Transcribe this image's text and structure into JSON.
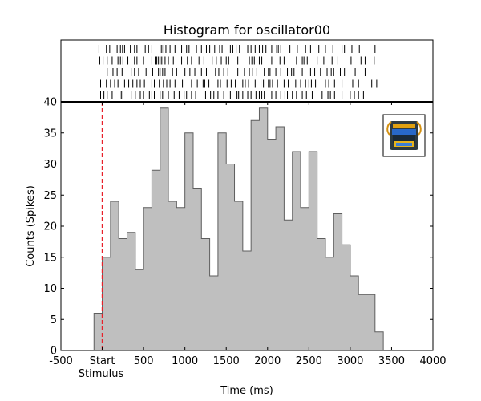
{
  "chart_data": {
    "type": "bar",
    "title": "Histogram for oscillator00",
    "xlabel": "Time (ms)",
    "ylabel": "Counts (Spikes)",
    "xlim": [
      -500,
      4000
    ],
    "ylim": [
      0,
      40
    ],
    "x_ticks": [
      {
        "value": -500,
        "label": "-500"
      },
      {
        "value": 0,
        "label": "Start"
      },
      {
        "value": 500,
        "label": "500"
      },
      {
        "value": 1000,
        "label": "1000"
      },
      {
        "value": 1500,
        "label": "1500"
      },
      {
        "value": 2000,
        "label": "2000"
      },
      {
        "value": 2500,
        "label": "2500"
      },
      {
        "value": 3000,
        "label": "3000"
      },
      {
        "value": 3500,
        "label": "3500"
      },
      {
        "value": 4000,
        "label": "4000"
      }
    ],
    "y_ticks": [
      0,
      5,
      10,
      15,
      20,
      25,
      30,
      35,
      40
    ],
    "stimulus": {
      "x": 0,
      "label": "Stimulus",
      "color": "#e8202a"
    },
    "bin_edges": [
      -100,
      0,
      100,
      200,
      300,
      400,
      500,
      600,
      700,
      800,
      900,
      1000,
      1100,
      1200,
      1300,
      1400,
      1500,
      1600,
      1700,
      1800,
      1900,
      2000,
      2100,
      2200,
      2300,
      2400,
      2500,
      2600,
      2700,
      2800,
      2900,
      3000,
      3100,
      3200,
      3300,
      3400
    ],
    "values": [
      6,
      15,
      24,
      18,
      19,
      13,
      23,
      29,
      39,
      24,
      23,
      35,
      26,
      18,
      12,
      35,
      30,
      24,
      16,
      37,
      39,
      34,
      36,
      21,
      32,
      23,
      32,
      18,
      15,
      22,
      17,
      12,
      9,
      9,
      3
    ],
    "bar_fill": "#bfbfbf",
    "bar_edge": "#5e5e5e",
    "raster": {
      "trials": 5,
      "spikes": [
        [
          -40,
          50,
          90,
          180,
          220,
          245,
          270,
          340,
          390,
          420,
          520,
          560,
          600,
          700,
          720,
          745,
          770,
          820,
          880,
          960,
          1020,
          1050,
          1140,
          1200,
          1260,
          1300,
          1360,
          1420,
          1450,
          1550,
          1580,
          1620,
          1660,
          1760,
          1800,
          1850,
          1900,
          1940,
          1980,
          2050,
          2110,
          2130,
          2160,
          2270,
          2360,
          2460,
          2520,
          2550,
          2620,
          2700,
          2790,
          2900,
          2930,
          3020,
          3110,
          3300
        ],
        [
          -30,
          10,
          60,
          120,
          190,
          220,
          250,
          310,
          390,
          420,
          500,
          600,
          640,
          660,
          680,
          700,
          720,
          760,
          800,
          860,
          960,
          1030,
          1080,
          1170,
          1230,
          1330,
          1380,
          1440,
          1500,
          1530,
          1640,
          1780,
          1810,
          1840,
          1900,
          1930,
          2050,
          2150,
          2200,
          2350,
          2420,
          2440,
          2480,
          2600,
          2680,
          2780,
          2850,
          3010,
          3130,
          3180,
          3290
        ],
        [
          60,
          130,
          180,
          240,
          300,
          350,
          390,
          440,
          530,
          610,
          680,
          700,
          730,
          760,
          850,
          900,
          1000,
          1060,
          1120,
          1200,
          1260,
          1370,
          1410,
          1470,
          1520,
          1640,
          1720,
          1780,
          1820,
          1870,
          1960,
          2010,
          2030,
          2100,
          2160,
          2240,
          2290,
          2320,
          2420,
          2520,
          2570,
          2640,
          2720,
          2770,
          2800,
          2880,
          2930,
          3060,
          3180
        ],
        [
          -20,
          50,
          100,
          150,
          190,
          270,
          320,
          370,
          420,
          460,
          510,
          600,
          630,
          690,
          740,
          780,
          820,
          880,
          970,
          1080,
          1150,
          1220,
          1240,
          1290,
          1400,
          1430,
          1510,
          1560,
          1610,
          1700,
          1730,
          1770,
          1850,
          1920,
          1950,
          2010,
          2030,
          2060,
          2120,
          2200,
          2250,
          2340,
          2400,
          2460,
          2500,
          2530,
          2580,
          2700,
          2740,
          2810,
          2900,
          3030,
          3100,
          3260,
          3320
        ],
        [
          -20,
          20,
          60,
          120,
          230,
          250,
          300,
          350,
          400,
          460,
          500,
          570,
          600,
          630,
          700,
          730,
          800,
          870,
          930,
          990,
          1020,
          1080,
          1130,
          1250,
          1310,
          1350,
          1400,
          1470,
          1550,
          1630,
          1650,
          1700,
          1760,
          1800,
          1860,
          1900,
          1930,
          1960,
          2050,
          2100,
          2160,
          2210,
          2240,
          2300,
          2350,
          2420,
          2470,
          2540,
          2660,
          2730,
          2760,
          2810,
          2900,
          3000,
          3050,
          3100,
          3160
        ]
      ]
    }
  },
  "logo_icon": "oscillator-logo-icon"
}
